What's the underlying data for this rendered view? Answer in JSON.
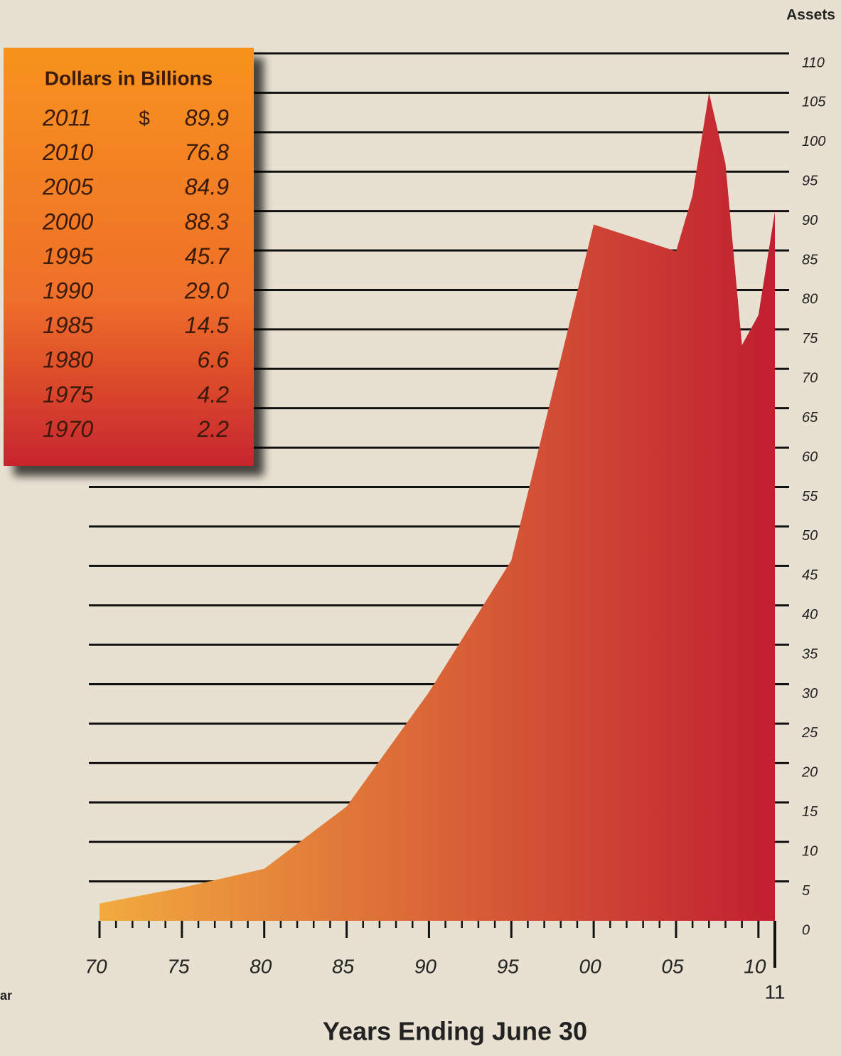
{
  "chart_data": {
    "type": "area",
    "title": "Assets",
    "xlabel": "Years Ending June 30",
    "annotation": "ar",
    "x": [
      1970,
      1975,
      1980,
      1985,
      1990,
      1995,
      2000,
      2005,
      2006,
      2007,
      2008,
      2009,
      2010,
      2011
    ],
    "values": [
      2.2,
      4.2,
      6.6,
      14.5,
      29.0,
      45.7,
      88.3,
      84.9,
      92,
      105,
      96,
      73,
      76.8,
      89.9
    ],
    "gradient": [
      "#f2aa3e",
      "#c11f30"
    ],
    "xlim": [
      1970,
      2011
    ],
    "xticks": [
      {
        "value": 1970,
        "label": "70"
      },
      {
        "value": 1975,
        "label": "75"
      },
      {
        "value": 1980,
        "label": "80"
      },
      {
        "value": 1985,
        "label": "85"
      },
      {
        "value": 1990,
        "label": "90"
      },
      {
        "value": 1995,
        "label": "95"
      },
      {
        "value": 2000,
        "label": "00"
      },
      {
        "value": 2005,
        "label": "05"
      },
      {
        "value": 2010,
        "label": "10"
      },
      {
        "value": 2011,
        "label": "11"
      }
    ],
    "ylim": [
      0,
      110
    ],
    "yticks": [
      0,
      5,
      10,
      15,
      20,
      25,
      30,
      35,
      40,
      45,
      50,
      55,
      60,
      65,
      70,
      75,
      80,
      85,
      90,
      95,
      100,
      105,
      110
    ],
    "grid": true
  },
  "table": {
    "title": "Dollars in Billions",
    "rows": [
      [
        "2011",
        "$",
        "89.9"
      ],
      [
        "2010",
        "",
        "76.8"
      ],
      [
        "2005",
        "",
        "84.9"
      ],
      [
        "2000",
        "",
        "88.3"
      ],
      [
        "1995",
        "",
        "45.7"
      ],
      [
        "1990",
        "",
        "29.0"
      ],
      [
        "1985",
        "",
        "14.5"
      ],
      [
        "1980",
        "",
        "6.6"
      ],
      [
        "1975",
        "",
        "4.2"
      ],
      [
        "1970",
        "",
        "2.2"
      ]
    ]
  }
}
